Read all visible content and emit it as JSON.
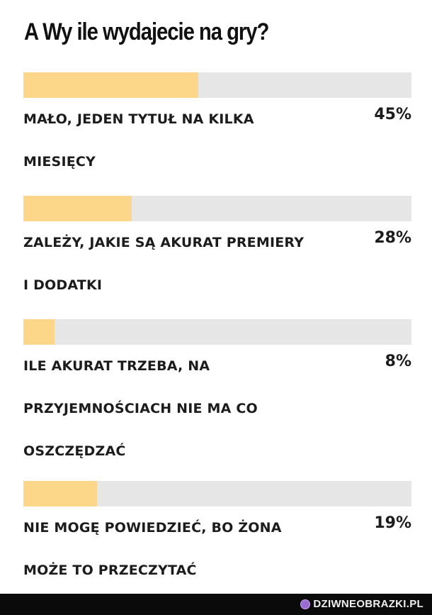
{
  "poll": {
    "title": "A Wy ile wydajecie na gry?",
    "options": [
      {
        "label": "MAŁO, JEDEN TYTUŁ NA KILKA MIESIĘCY",
        "percent_text": "45%",
        "percent": 45
      },
      {
        "label": "ZALEŻY, JAKIE SĄ AKURAT PREMIERY I DODATKI",
        "percent_text": "28%",
        "percent": 28
      },
      {
        "label": "ILE AKURAT TRZEBA, NA PRZYJEMNOŚCIACH NIE MA CO OSZCZĘDZAĆ",
        "percent_text": "8%",
        "percent": 8
      },
      {
        "label": "NIE MOGĘ POWIEDZIEĆ, BO ŻONA MOŻE TO PRZECZYTAĆ",
        "percent_text": "19%",
        "percent": 19
      }
    ]
  },
  "colors": {
    "bar_fill": "#fcd78a",
    "bar_track": "#e6e6e6",
    "text": "#1c1c1c"
  },
  "footer": {
    "watermark": "DZIWNEOBRAZKI.PL",
    "icon": "watermark-logo-icon"
  }
}
